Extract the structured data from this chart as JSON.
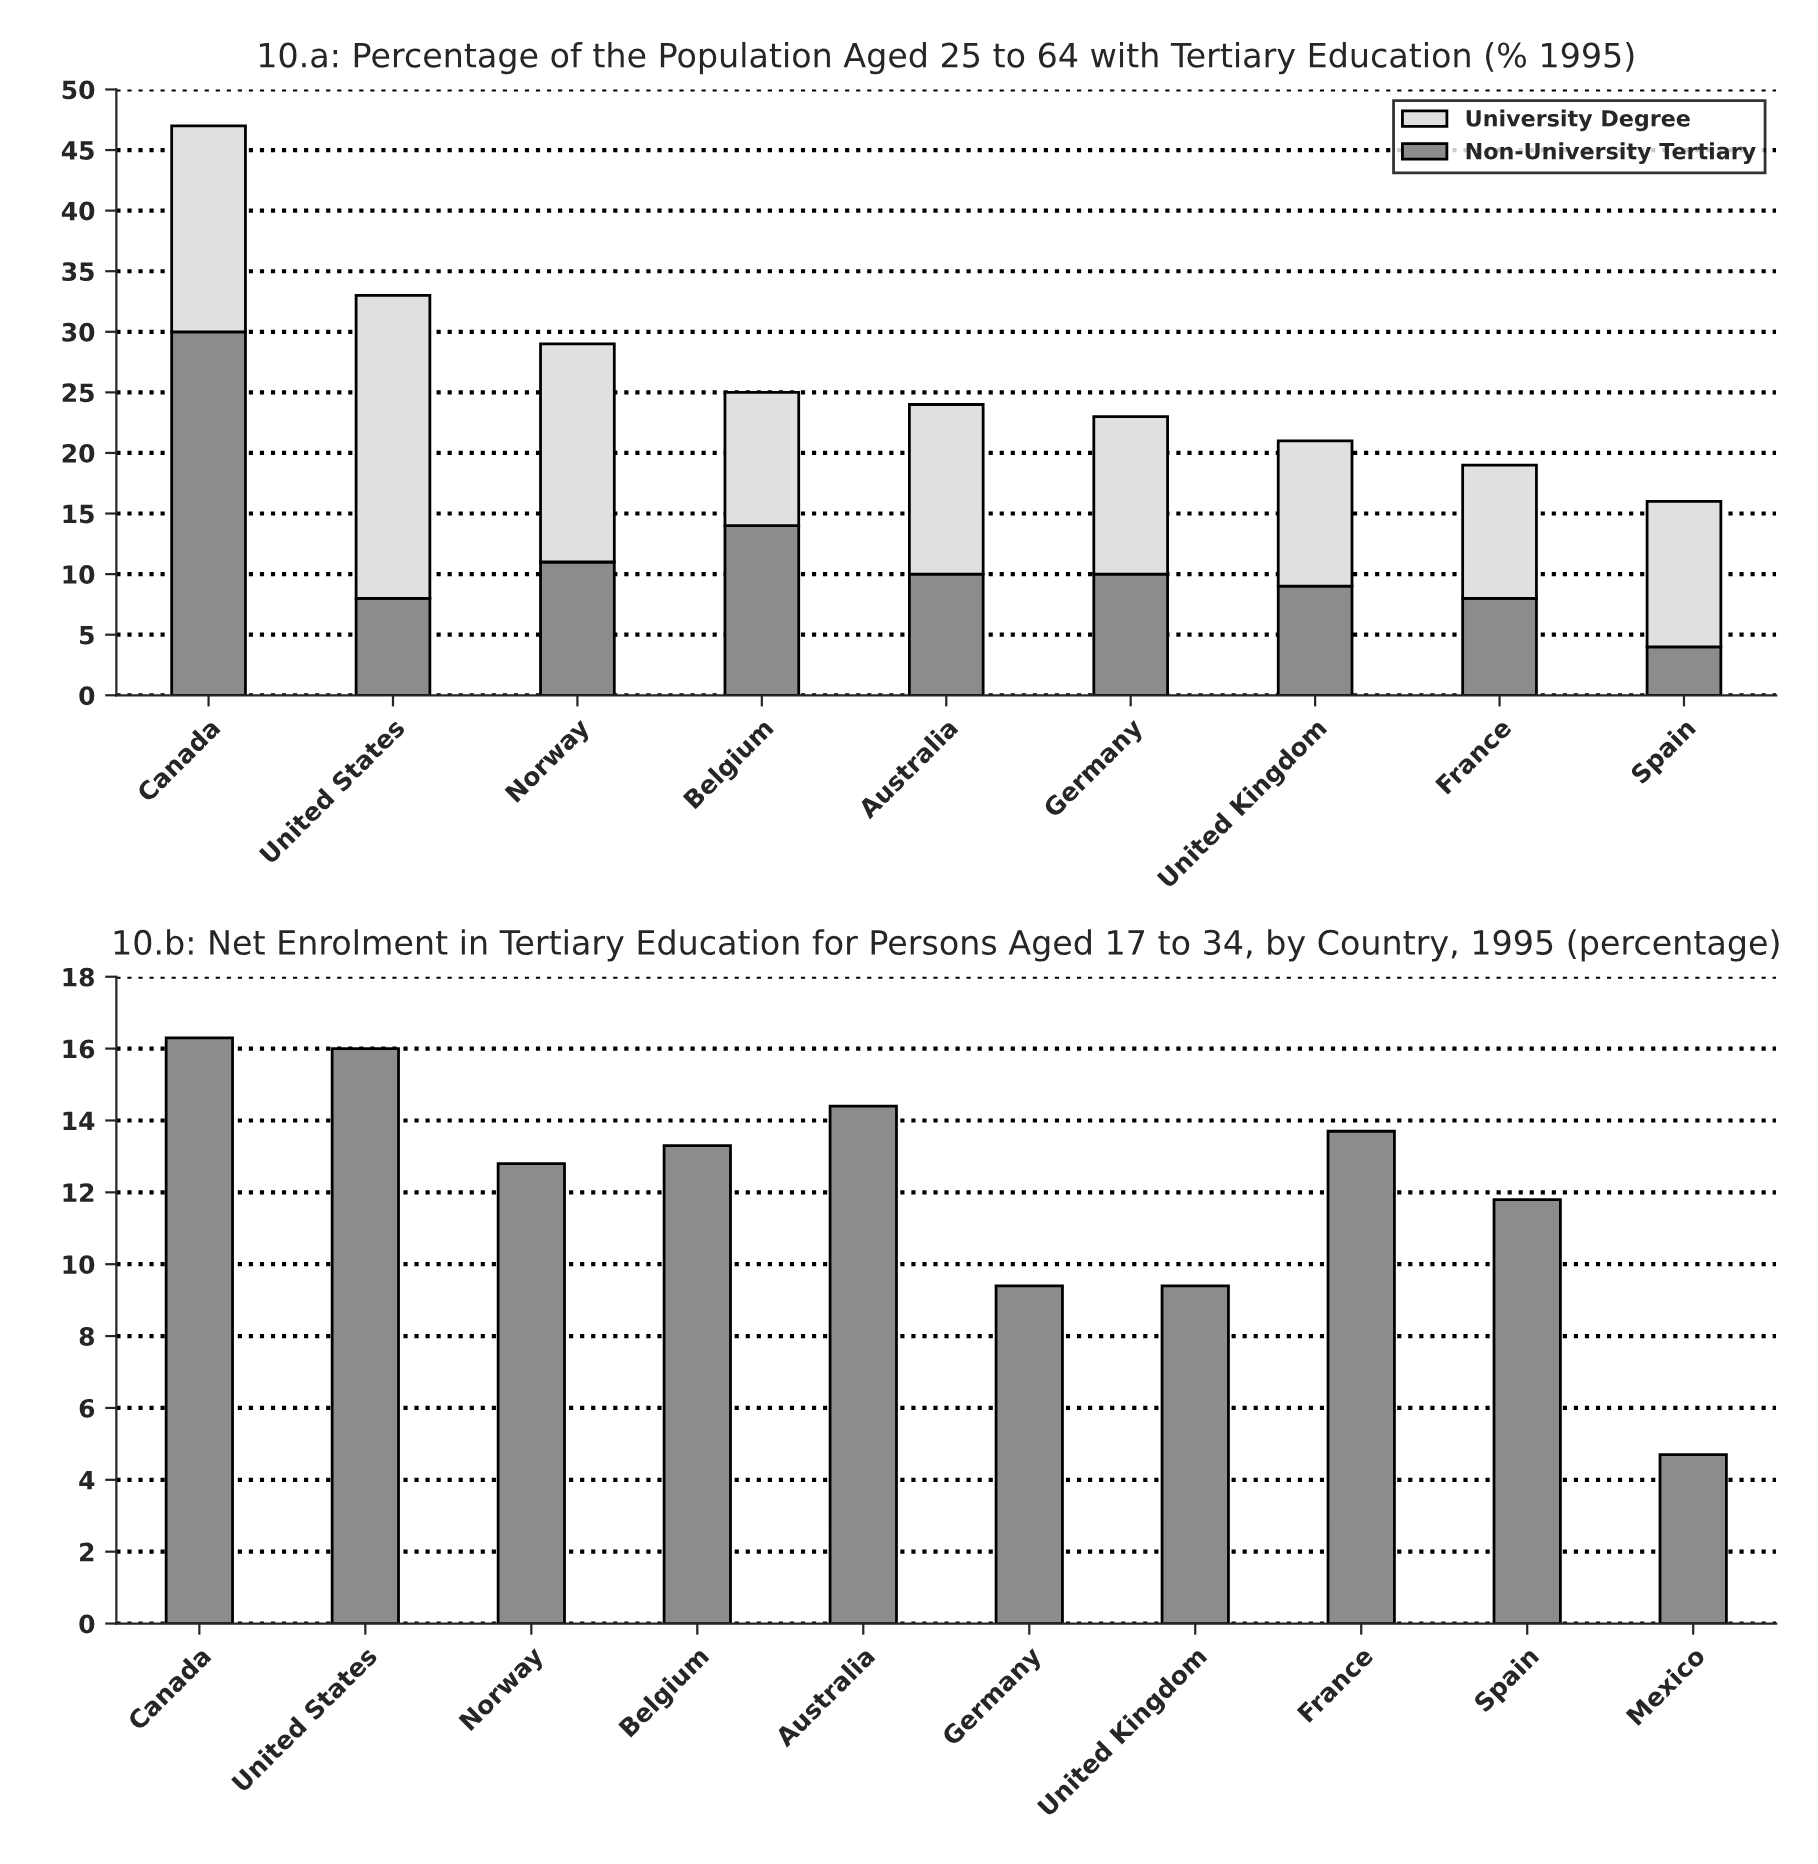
{
  "chart_data": [
    {
      "type": "bar",
      "title": "10.a: Percentage of the Population Aged 25 to 64 with Tertiary Education (% 1995)",
      "stacked": true,
      "categories": [
        "Canada",
        "United States",
        "Norway",
        "Belgium",
        "Australia",
        "Germany",
        "United Kingdom",
        "France",
        "Spain"
      ],
      "series": [
        {
          "name": "Non-University Tertiary",
          "color": "#8c8c8c",
          "values": [
            30,
            8,
            11,
            14,
            10,
            10,
            9,
            8,
            4
          ]
        },
        {
          "name": "University Degree",
          "color": "#e0e0e0",
          "values": [
            17,
            25,
            18,
            11,
            14,
            13,
            12,
            11,
            12
          ]
        }
      ],
      "ylim": [
        0,
        50
      ],
      "yticks": [
        0,
        5,
        10,
        15,
        20,
        25,
        30,
        35,
        40,
        45,
        50
      ],
      "grid": "y",
      "legend": "top right"
    },
    {
      "type": "bar",
      "title": "10.b: Net Enrolment in Tertiary Education for Persons Aged 17 to 34, by Country, 1995 (percentage)",
      "categories": [
        "Canada",
        "United States",
        "Norway",
        "Belgium",
        "Australia",
        "Germany",
        "United Kingdom",
        "France",
        "Spain",
        "Mexico"
      ],
      "series": [
        {
          "color": "#8c8c8c",
          "values": [
            16.3,
            16.0,
            12.8,
            13.3,
            14.4,
            9.4,
            9.4,
            13.7,
            11.8,
            4.7
          ]
        }
      ],
      "ylim": [
        0,
        18
      ],
      "yticks": [
        0,
        2,
        4,
        6,
        8,
        10,
        12,
        14,
        16,
        18
      ],
      "grid": "y"
    }
  ]
}
